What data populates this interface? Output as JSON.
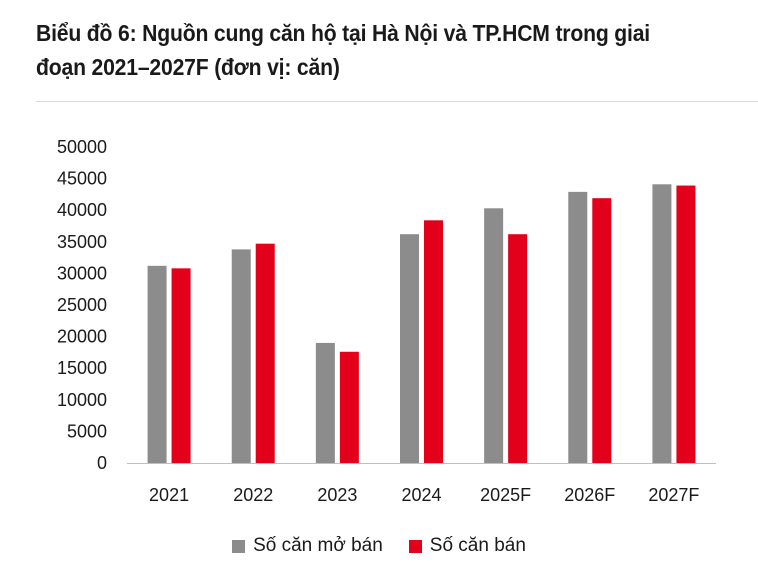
{
  "title": "Biểu đồ 6: Nguồn cung căn hộ tại Hà Nội và TP.HCM trong giai đoạn 2021–2027F (đơn vị: căn)",
  "chart_data": {
    "type": "bar",
    "categories": [
      "2021",
      "2022",
      "2023",
      "2024",
      "2025F",
      "2026F",
      "2027F"
    ],
    "series": [
      {
        "name": "Số căn mở bán",
        "color": "#8c8c8c",
        "values": [
          31200,
          33800,
          19000,
          36200,
          40300,
          42900,
          44100
        ]
      },
      {
        "name": "Số căn bán",
        "color": "#e2001a",
        "values": [
          30800,
          34700,
          17600,
          38400,
          36200,
          41900,
          43900
        ]
      }
    ],
    "yticks": [
      "0",
      "5000",
      "10000",
      "15000",
      "20000",
      "25000",
      "30000",
      "35000",
      "40000",
      "45000",
      "50000"
    ],
    "ylim": [
      0,
      50000
    ],
    "grid": false,
    "legend": "bottom"
  }
}
